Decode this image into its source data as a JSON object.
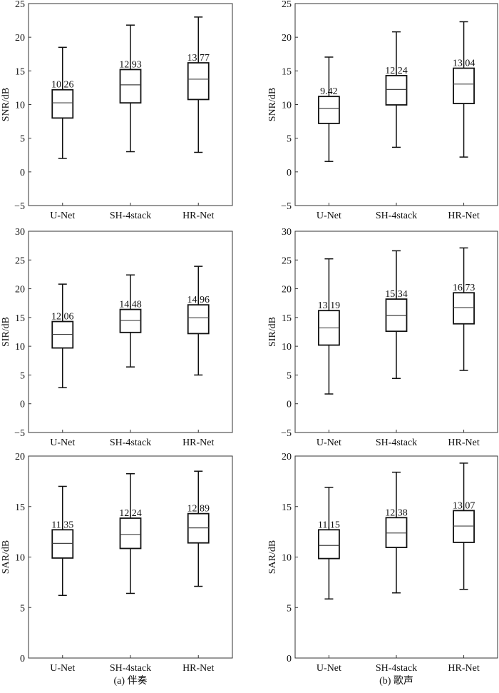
{
  "chart_data": [
    {
      "type": "box",
      "panel": "a",
      "ylabel": "SNR/dB",
      "ylim": [
        -5,
        25
      ],
      "yticks": [
        -5,
        0,
        5,
        10,
        15,
        20,
        25
      ],
      "categories": [
        "U-Net",
        "SH-4stack",
        "HR-Net"
      ],
      "boxes": [
        {
          "whisker_low": 2.0,
          "q1": 8.0,
          "median": 10.26,
          "q3": 12.2,
          "whisker_high": 18.5,
          "label": "10.26"
        },
        {
          "whisker_low": 3.0,
          "q1": 10.25,
          "median": 12.93,
          "q3": 15.2,
          "whisker_high": 21.8,
          "label": "12.93"
        },
        {
          "whisker_low": 2.9,
          "q1": 10.75,
          "median": 13.77,
          "q3": 16.2,
          "whisker_high": 23.0,
          "label": "13.77"
        }
      ]
    },
    {
      "type": "box",
      "panel": "b",
      "ylabel": "SNR/dB",
      "ylim": [
        -5,
        25
      ],
      "yticks": [
        -5,
        0,
        5,
        10,
        15,
        20,
        25
      ],
      "categories": [
        "U-Net",
        "SH-4stack",
        "HR-Net"
      ],
      "boxes": [
        {
          "whisker_low": 1.55,
          "q1": 7.2,
          "median": 9.42,
          "q3": 11.2,
          "whisker_high": 17.05,
          "label": "9.42"
        },
        {
          "whisker_low": 3.65,
          "q1": 9.95,
          "median": 12.24,
          "q3": 14.3,
          "whisker_high": 20.8,
          "label": "12.24"
        },
        {
          "whisker_low": 2.2,
          "q1": 10.15,
          "median": 13.04,
          "q3": 15.4,
          "whisker_high": 22.3,
          "label": "13.04"
        }
      ]
    },
    {
      "type": "box",
      "panel": "a",
      "ylabel": "SIR/dB",
      "ylim": [
        -5,
        30
      ],
      "yticks": [
        -5,
        0,
        5,
        10,
        15,
        20,
        25,
        30
      ],
      "categories": [
        "U-Net",
        "SH-4stack",
        "HR-Net"
      ],
      "boxes": [
        {
          "whisker_low": 2.8,
          "q1": 9.7,
          "median": 12.06,
          "q3": 14.3,
          "whisker_high": 20.8,
          "label": "12.06"
        },
        {
          "whisker_low": 6.4,
          "q1": 12.4,
          "median": 14.48,
          "q3": 16.4,
          "whisker_high": 22.4,
          "label": "14.48"
        },
        {
          "whisker_low": 5.0,
          "q1": 12.2,
          "median": 14.96,
          "q3": 17.2,
          "whisker_high": 23.9,
          "label": "14.96"
        }
      ]
    },
    {
      "type": "box",
      "panel": "b",
      "ylabel": "SIR/dB",
      "ylim": [
        -5,
        30
      ],
      "yticks": [
        -5,
        0,
        5,
        10,
        15,
        20,
        25,
        30
      ],
      "categories": [
        "U-Net",
        "SH-4stack",
        "HR-Net"
      ],
      "boxes": [
        {
          "whisker_low": 1.7,
          "q1": 10.2,
          "median": 13.19,
          "q3": 16.2,
          "whisker_high": 25.2,
          "label": "13.19"
        },
        {
          "whisker_low": 4.4,
          "q1": 12.6,
          "median": 15.34,
          "q3": 18.2,
          "whisker_high": 26.6,
          "label": "15.34"
        },
        {
          "whisker_low": 5.8,
          "q1": 13.9,
          "median": 16.73,
          "q3": 19.3,
          "whisker_high": 27.1,
          "label": "16.73"
        }
      ]
    },
    {
      "type": "box",
      "panel": "a",
      "ylabel": "SAR/dB",
      "ylim": [
        0,
        20
      ],
      "yticks": [
        0,
        5,
        10,
        15,
        20
      ],
      "categories": [
        "U-Net",
        "SH-4stack",
        "HR-Net"
      ],
      "boxes": [
        {
          "whisker_low": 6.2,
          "q1": 9.9,
          "median": 11.35,
          "q3": 12.7,
          "whisker_high": 17.0,
          "label": "11.35"
        },
        {
          "whisker_low": 6.4,
          "q1": 10.85,
          "median": 12.24,
          "q3": 13.85,
          "whisker_high": 18.25,
          "label": "12.24"
        },
        {
          "whisker_low": 7.1,
          "q1": 11.4,
          "median": 12.89,
          "q3": 14.3,
          "whisker_high": 18.5,
          "label": "12.89"
        }
      ]
    },
    {
      "type": "box",
      "panel": "b",
      "ylabel": "SAR/dB",
      "ylim": [
        0,
        20
      ],
      "yticks": [
        0,
        5,
        10,
        15,
        20
      ],
      "categories": [
        "U-Net",
        "SH-4stack",
        "HR-Net"
      ],
      "boxes": [
        {
          "whisker_low": 5.85,
          "q1": 9.85,
          "median": 11.15,
          "q3": 12.7,
          "whisker_high": 16.9,
          "label": "11.15"
        },
        {
          "whisker_low": 6.45,
          "q1": 10.95,
          "median": 12.38,
          "q3": 13.9,
          "whisker_high": 18.4,
          "label": "12.38"
        },
        {
          "whisker_low": 6.8,
          "q1": 11.45,
          "median": 13.07,
          "q3": 14.6,
          "whisker_high": 19.3,
          "label": "13.07"
        }
      ]
    }
  ],
  "captions": {
    "a": "(a) 伴奏",
    "b": "(b) 歌声"
  }
}
